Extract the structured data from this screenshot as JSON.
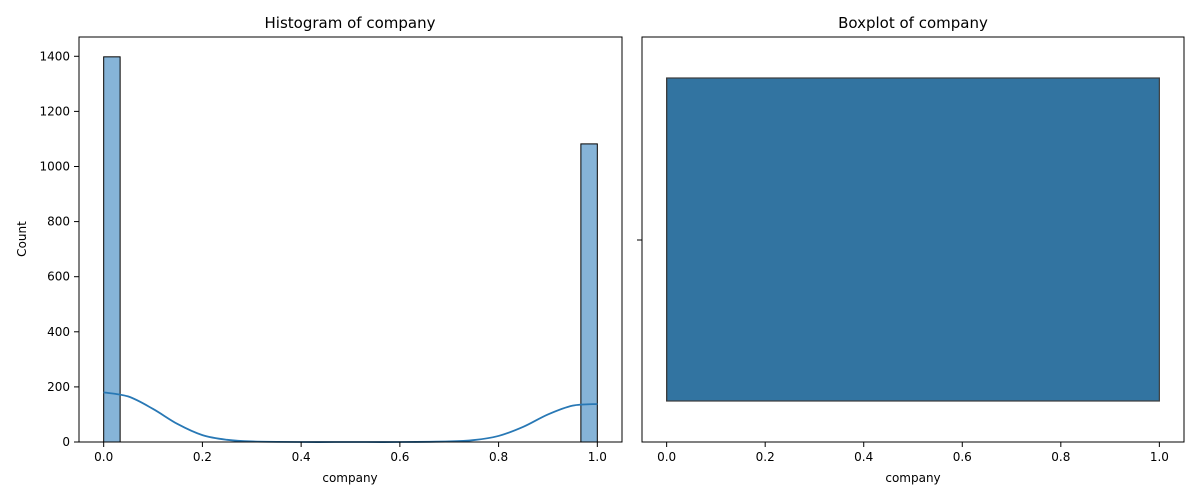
{
  "chart_data": [
    {
      "type": "bar",
      "subtype": "histogram-with-kde",
      "title": "Histogram of company",
      "xlabel": "company",
      "ylabel": "Count",
      "xlim": [
        -0.05,
        1.05
      ],
      "ylim": [
        0,
        1470
      ],
      "xticks": [
        "0.0",
        "0.2",
        "0.4",
        "0.6",
        "0.8",
        "1.0"
      ],
      "xtick_values": [
        0,
        0.2,
        0.4,
        0.6,
        0.8,
        1.0
      ],
      "yticks": [
        "0",
        "200",
        "400",
        "600",
        "800",
        "1000",
        "1200",
        "1400"
      ],
      "ytick_values": [
        0,
        200,
        400,
        600,
        800,
        1000,
        1200,
        1400
      ],
      "bins": [
        {
          "x0": 0.0,
          "x1": 0.0333,
          "count": 1398
        },
        {
          "x0": 0.9667,
          "x1": 1.0,
          "count": 1082
        }
      ],
      "kde": {
        "x": [
          0.0,
          0.05,
          0.1,
          0.15,
          0.2,
          0.25,
          0.3,
          0.4,
          0.5,
          0.6,
          0.7,
          0.75,
          0.8,
          0.85,
          0.9,
          0.95,
          1.0
        ],
        "y": [
          180,
          165,
          120,
          65,
          25,
          8,
          2,
          0,
          0,
          0,
          2,
          7,
          22,
          55,
          100,
          132,
          138
        ]
      },
      "grid": false,
      "colors": {
        "bar": "#86b4d8",
        "edge": "#000000",
        "kde": "#2878b5"
      }
    },
    {
      "type": "boxplot",
      "title": "Boxplot of company",
      "xlabel": "company",
      "xlim": [
        -0.05,
        1.05
      ],
      "xticks": [
        "0.0",
        "0.2",
        "0.4",
        "0.6",
        "0.8",
        "1.0"
      ],
      "xtick_values": [
        0,
        0.2,
        0.4,
        0.6,
        0.8,
        1.0
      ],
      "box": {
        "min": 0,
        "q1": 0,
        "median": 0,
        "q3": 1,
        "max": 1
      },
      "grid": false,
      "colors": {
        "box": "#3274a1",
        "edge": "#3d3d3d"
      }
    }
  ]
}
